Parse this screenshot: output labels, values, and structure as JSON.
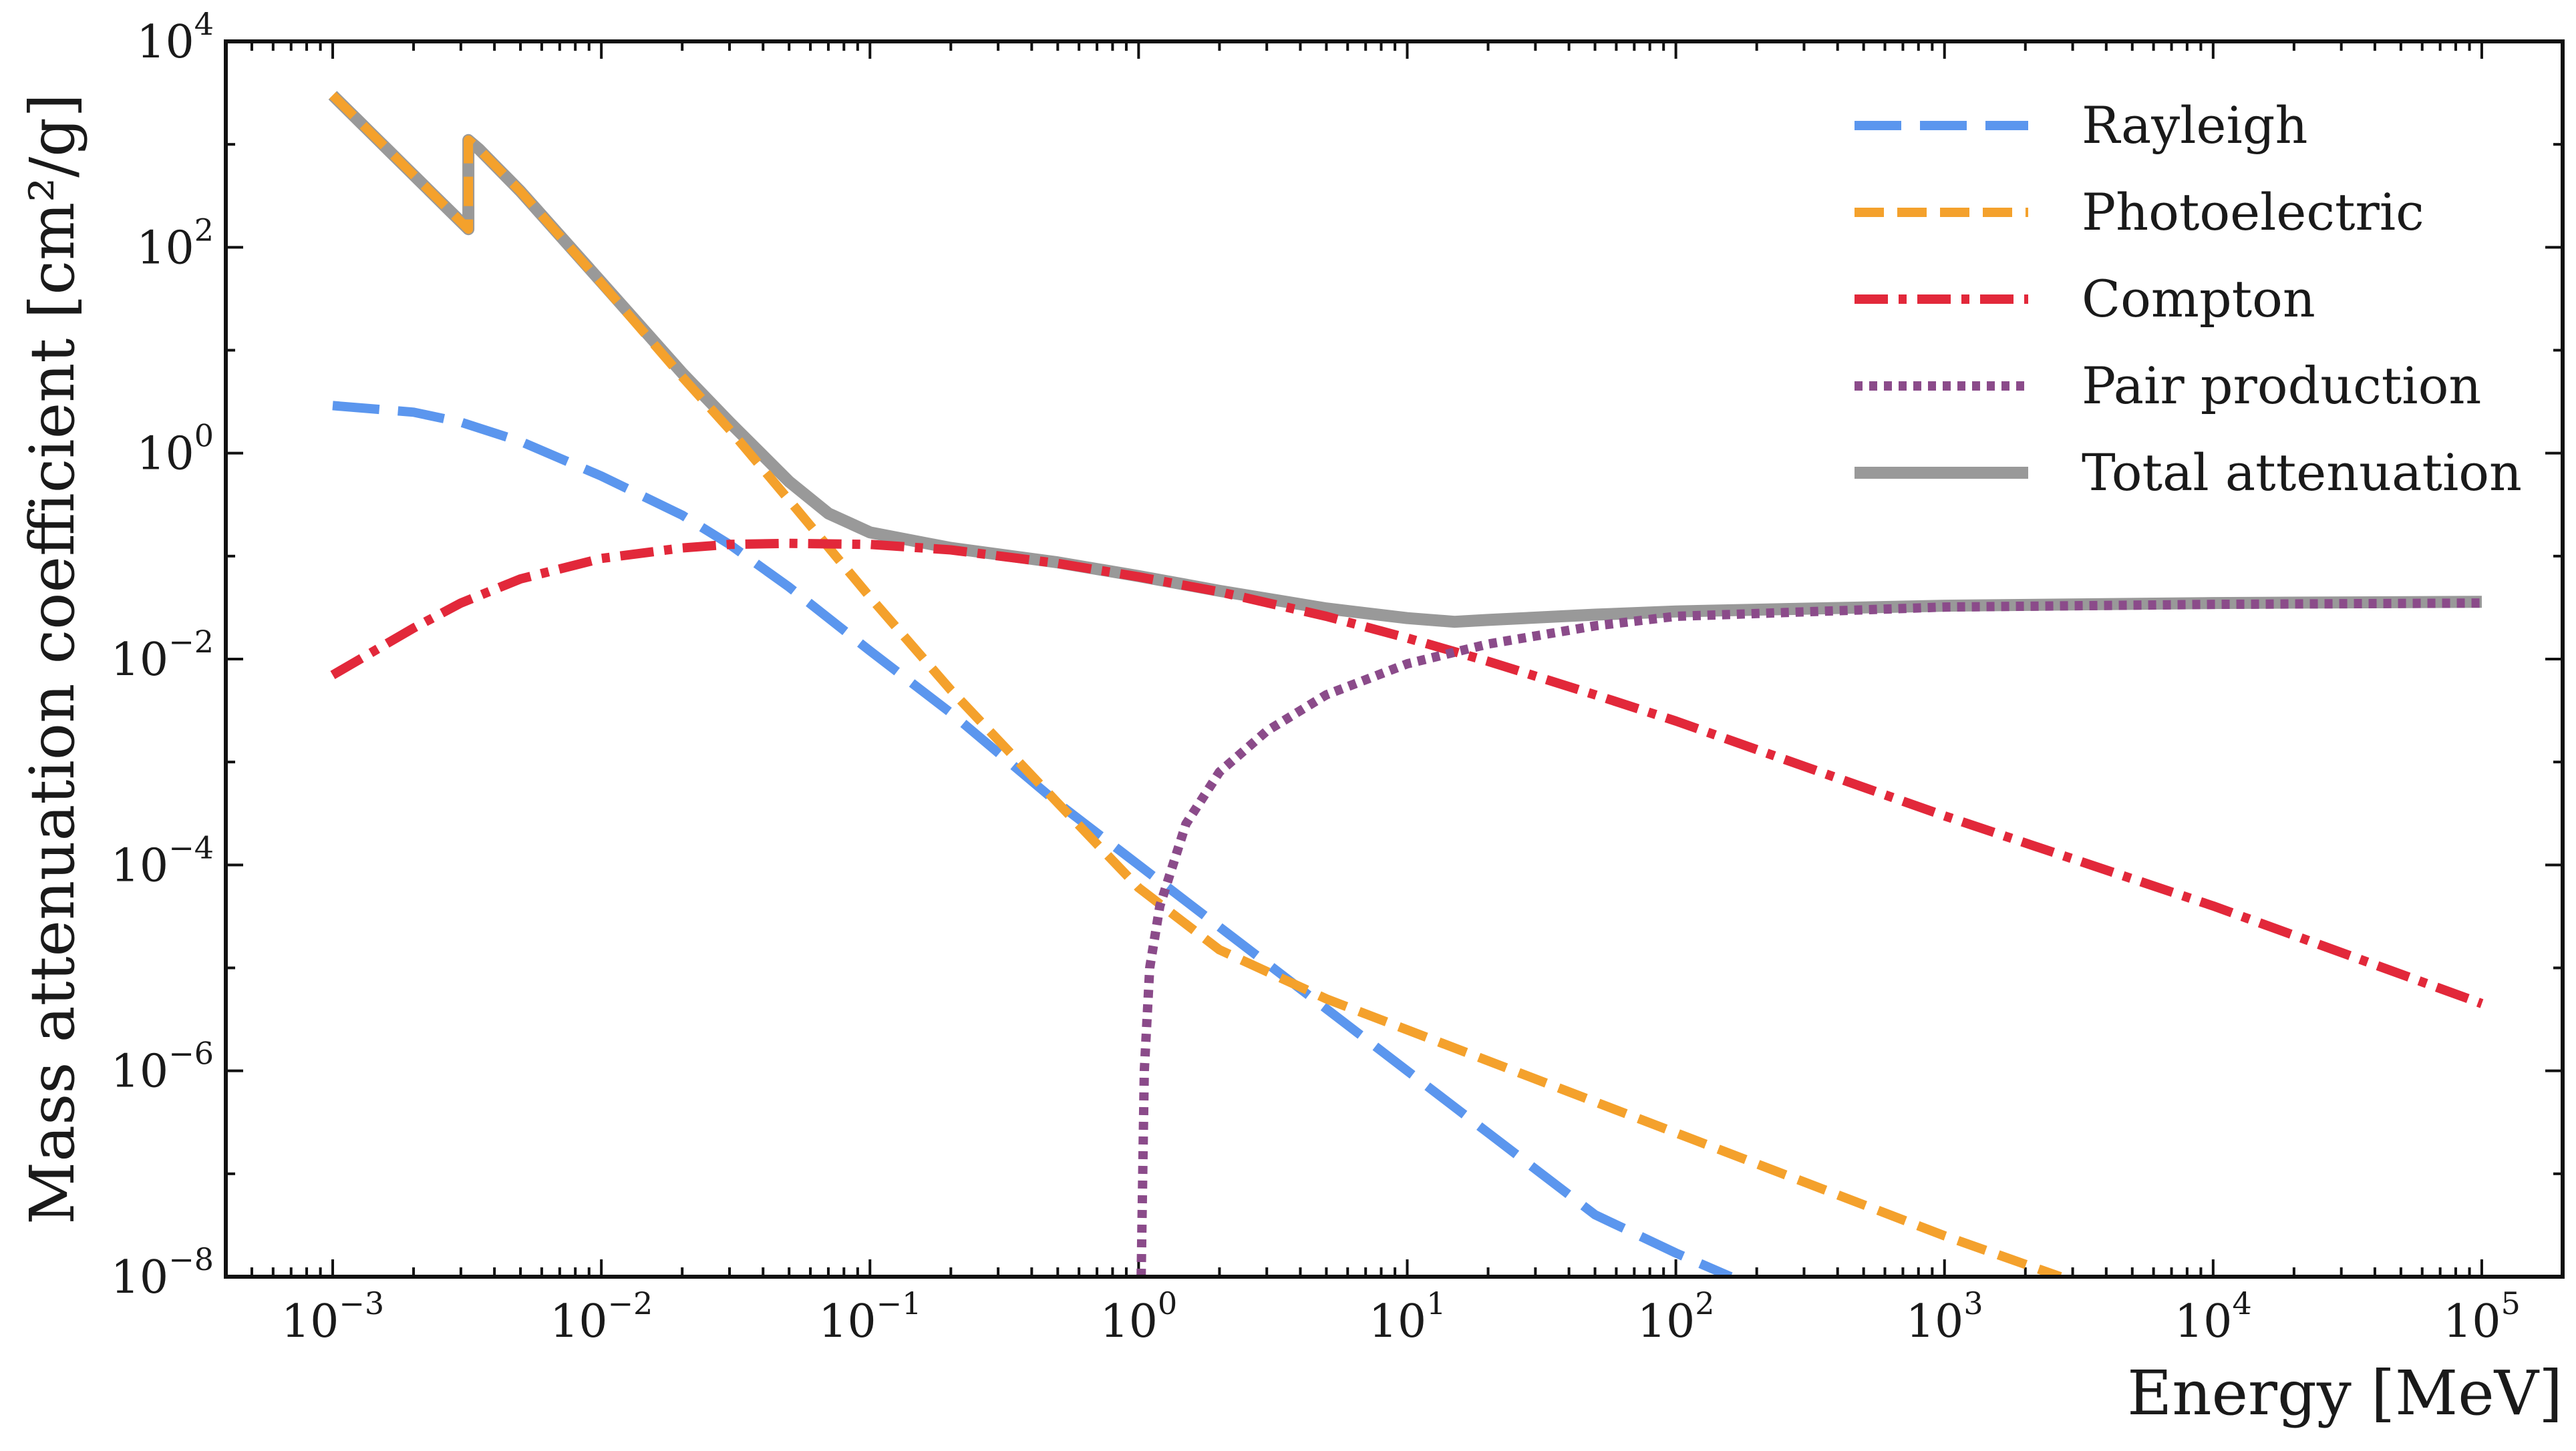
{
  "chart_data": {
    "type": "line",
    "title": "",
    "xlabel": "Energy [MeV]",
    "ylabel": "Mass attenuation coefficient [cm²/g]",
    "xscale": "log",
    "yscale": "log",
    "xlim": [
      0.0004,
      200000
    ],
    "ylim": [
      1e-08,
      10000
    ],
    "grid": false,
    "legend_position": "top-right",
    "x_ticks": [
      {
        "base": "10",
        "exp": "−3"
      },
      {
        "base": "10",
        "exp": "−2"
      },
      {
        "base": "10",
        "exp": "−1"
      },
      {
        "base": "10",
        "exp": "0"
      },
      {
        "base": "10",
        "exp": "1"
      },
      {
        "base": "10",
        "exp": "2"
      },
      {
        "base": "10",
        "exp": "3"
      },
      {
        "base": "10",
        "exp": "4"
      },
      {
        "base": "10",
        "exp": "5"
      }
    ],
    "y_ticks": [
      {
        "base": "10",
        "exp": "−8"
      },
      {
        "base": "10",
        "exp": "−6"
      },
      {
        "base": "10",
        "exp": "−4"
      },
      {
        "base": "10",
        "exp": "−2"
      },
      {
        "base": "10",
        "exp": "0"
      },
      {
        "base": "10",
        "exp": "2"
      },
      {
        "base": "10",
        "exp": "4"
      }
    ],
    "series": [
      {
        "name": "Rayleigh",
        "color": "#5b96ee",
        "style": "dashed",
        "x": [
          0.001,
          0.002,
          0.003,
          0.005,
          0.01,
          0.02,
          0.03,
          0.05,
          0.1,
          0.2,
          0.5,
          1,
          2,
          5,
          10,
          20,
          50,
          100,
          160
        ],
        "y": [
          2.9,
          2.5,
          2.0,
          1.3,
          0.6,
          0.25,
          0.13,
          0.05,
          0.012,
          0.003,
          0.0004,
          0.0001,
          2.5e-05,
          4e-06,
          1e-06,
          2.5e-07,
          4e-08,
          1.7e-08,
          1e-08
        ]
      },
      {
        "name": "Photoelectric",
        "color": "#f4a12c",
        "style": "dashed",
        "x": [
          0.001,
          0.0032,
          0.0032,
          0.0035,
          0.005,
          0.01,
          0.02,
          0.03,
          0.05,
          0.1,
          0.2,
          0.5,
          1,
          2,
          5,
          10,
          100,
          1000,
          2700
        ],
        "y": [
          3000,
          150,
          1100,
          900,
          350,
          45,
          5.5,
          1.7,
          0.35,
          0.04,
          0.005,
          0.0004,
          6e-05,
          1.5e-05,
          5e-06,
          2.5e-06,
          2.5e-07,
          2.5e-08,
          1e-08
        ]
      },
      {
        "name": "Compton",
        "color": "#e2283a",
        "style": "dash-dot",
        "x": [
          0.001,
          0.002,
          0.003,
          0.005,
          0.01,
          0.02,
          0.03,
          0.05,
          0.1,
          0.2,
          0.5,
          1,
          2,
          5,
          10,
          20,
          50,
          100,
          1000,
          10000,
          100000
        ],
        "y": [
          0.007,
          0.02,
          0.035,
          0.06,
          0.095,
          0.12,
          0.13,
          0.133,
          0.13,
          0.115,
          0.085,
          0.063,
          0.045,
          0.026,
          0.016,
          0.0095,
          0.0045,
          0.0025,
          0.0003,
          4e-05,
          4.5e-06
        ]
      },
      {
        "name": "Pair production",
        "color": "#8b4b8a",
        "style": "dotted",
        "x": [
          1.022,
          1.05,
          1.1,
          1.2,
          1.5,
          2,
          3,
          5,
          10,
          20,
          50,
          100,
          1000,
          10000,
          100000
        ],
        "y": [
          1e-08,
          1e-06,
          1e-05,
          4e-05,
          0.00025,
          0.0008,
          0.002,
          0.0045,
          0.009,
          0.014,
          0.021,
          0.026,
          0.032,
          0.034,
          0.035
        ]
      },
      {
        "name": "Total attenuation",
        "color": "#999999",
        "style": "solid",
        "x": [
          0.001,
          0.0032,
          0.0032,
          0.0035,
          0.005,
          0.01,
          0.02,
          0.03,
          0.05,
          0.07,
          0.1,
          0.2,
          0.5,
          1,
          2,
          5,
          10,
          15,
          20,
          50,
          100,
          1000,
          10000,
          100000
        ],
        "y": [
          3000,
          150,
          1100,
          900,
          350,
          46,
          6,
          2.0,
          0.53,
          0.26,
          0.17,
          0.12,
          0.087,
          0.064,
          0.046,
          0.031,
          0.025,
          0.023,
          0.024,
          0.027,
          0.029,
          0.033,
          0.035,
          0.036
        ]
      }
    ]
  }
}
